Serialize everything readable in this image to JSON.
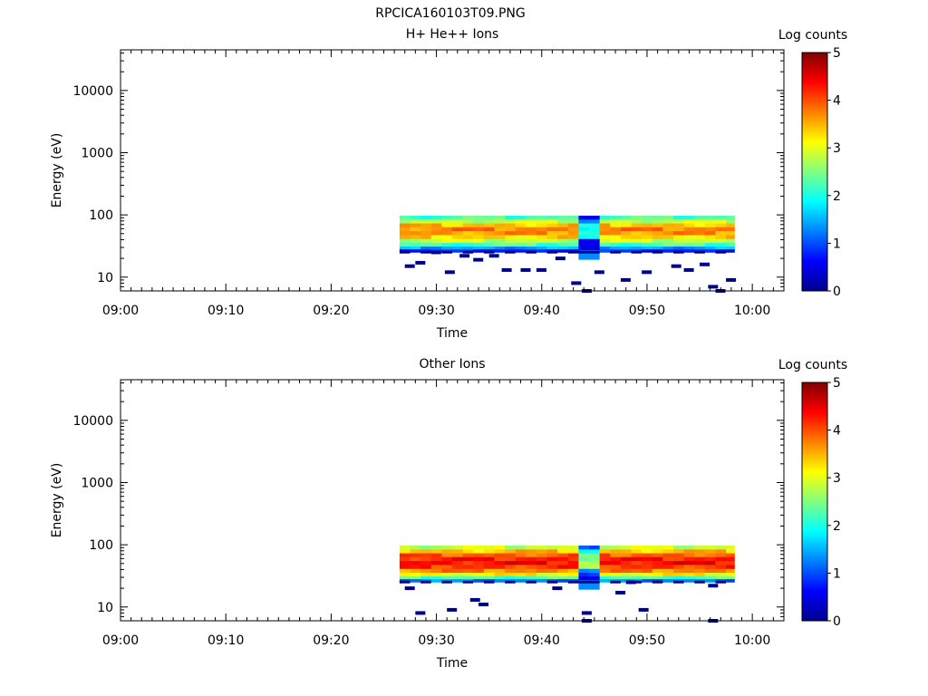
{
  "figure_title": "RPCICA160103T09.PNG",
  "colors": {
    "colormap": [
      "#00008f",
      "#0000ff",
      "#0080ff",
      "#00ffff",
      "#80ff80",
      "#ffff00",
      "#ff8000",
      "#ff0000",
      "#800000"
    ],
    "axes": "#000000",
    "background": "#ffffff"
  },
  "chart_data": [
    {
      "type": "heatmap",
      "title": "H+ He++ Ions",
      "xlabel": "Time",
      "ylabel": "Energy (eV)",
      "x_ticks": [
        "09:00",
        "09:10",
        "09:20",
        "09:30",
        "09:40",
        "09:50",
        "10:00"
      ],
      "x_range_minutes": [
        0,
        63
      ],
      "y_scale": "log",
      "y_range": [
        6,
        45000
      ],
      "y_ticks": [
        "10",
        "100",
        "1000",
        "10000"
      ],
      "y_tick_values": [
        10,
        100,
        1000,
        10000
      ],
      "colorbar_label": "Log counts",
      "colorbar_ticks": [
        "0",
        "1",
        "2",
        "3",
        "4",
        "5"
      ],
      "z_range": [
        0,
        5
      ],
      "data_window_minutes": [
        26.5,
        58.3
      ],
      "data_energy_range_eV": [
        20,
        95
      ],
      "profile_log_counts": [
        {
          "energy_eV": 90,
          "log_counts": 2.2
        },
        {
          "energy_eV": 78,
          "log_counts": 2.8
        },
        {
          "energy_eV": 68,
          "log_counts": 3.4
        },
        {
          "energy_eV": 59,
          "log_counts": 3.7
        },
        {
          "energy_eV": 51,
          "log_counts": 3.6
        },
        {
          "energy_eV": 44,
          "log_counts": 3.3
        },
        {
          "energy_eV": 38,
          "log_counts": 2.8
        },
        {
          "energy_eV": 33,
          "log_counts": 2.2
        },
        {
          "energy_eV": 29,
          "log_counts": 1.4
        },
        {
          "energy_eV": 27,
          "log_counts": 0.7
        }
      ],
      "dip_minutes": [
        43.8,
        45.1
      ],
      "sparse_low_energy_counts": [
        {
          "minute": 27.0,
          "energy_eV": 15
        },
        {
          "minute": 28.0,
          "energy_eV": 17
        },
        {
          "minute": 29.5,
          "energy_eV": 25
        },
        {
          "minute": 30.8,
          "energy_eV": 12
        },
        {
          "minute": 32.2,
          "energy_eV": 22
        },
        {
          "minute": 33.5,
          "energy_eV": 19
        },
        {
          "minute": 35.0,
          "energy_eV": 22
        },
        {
          "minute": 36.2,
          "energy_eV": 13
        },
        {
          "minute": 38.0,
          "energy_eV": 13
        },
        {
          "minute": 39.5,
          "energy_eV": 13
        },
        {
          "minute": 41.3,
          "energy_eV": 20
        },
        {
          "minute": 42.8,
          "energy_eV": 8
        },
        {
          "minute": 43.8,
          "energy_eV": 6
        },
        {
          "minute": 45.0,
          "energy_eV": 12
        },
        {
          "minute": 47.5,
          "energy_eV": 9
        },
        {
          "minute": 49.5,
          "energy_eV": 12
        },
        {
          "minute": 52.3,
          "energy_eV": 15
        },
        {
          "minute": 53.5,
          "energy_eV": 13
        },
        {
          "minute": 55.0,
          "energy_eV": 16
        },
        {
          "minute": 55.8,
          "energy_eV": 7
        },
        {
          "minute": 56.5,
          "energy_eV": 6
        },
        {
          "minute": 57.5,
          "energy_eV": 9
        }
      ]
    },
    {
      "type": "heatmap",
      "title": "Other Ions",
      "xlabel": "Time",
      "ylabel": "Energy (eV)",
      "x_ticks": [
        "09:00",
        "09:10",
        "09:20",
        "09:30",
        "09:40",
        "09:50",
        "10:00"
      ],
      "x_range_minutes": [
        0,
        63
      ],
      "y_scale": "log",
      "y_range": [
        6,
        45000
      ],
      "y_ticks": [
        "10",
        "100",
        "1000",
        "10000"
      ],
      "y_tick_values": [
        10,
        100,
        1000,
        10000
      ],
      "colorbar_label": "Log counts",
      "colorbar_ticks": [
        "0",
        "1",
        "2",
        "3",
        "4",
        "5"
      ],
      "z_range": [
        0,
        5
      ],
      "data_window_minutes": [
        26.5,
        58.3
      ],
      "data_energy_range_eV": [
        22,
        95
      ],
      "profile_log_counts": [
        {
          "energy_eV": 90,
          "log_counts": 2.8
        },
        {
          "energy_eV": 78,
          "log_counts": 3.4
        },
        {
          "energy_eV": 68,
          "log_counts": 3.9
        },
        {
          "energy_eV": 59,
          "log_counts": 4.2
        },
        {
          "energy_eV": 51,
          "log_counts": 4.3
        },
        {
          "energy_eV": 44,
          "log_counts": 4.1
        },
        {
          "energy_eV": 38,
          "log_counts": 3.7
        },
        {
          "energy_eV": 33,
          "log_counts": 3.1
        },
        {
          "energy_eV": 29,
          "log_counts": 2.2
        },
        {
          "energy_eV": 27,
          "log_counts": 1.2
        }
      ],
      "dip_minutes": [
        43.8,
        45.1
      ],
      "sparse_low_energy_counts": [
        {
          "minute": 27.0,
          "energy_eV": 20
        },
        {
          "minute": 28.0,
          "energy_eV": 8
        },
        {
          "minute": 31.0,
          "energy_eV": 9
        },
        {
          "minute": 33.2,
          "energy_eV": 13
        },
        {
          "minute": 34.0,
          "energy_eV": 11
        },
        {
          "minute": 41.0,
          "energy_eV": 20
        },
        {
          "minute": 43.8,
          "energy_eV": 8
        },
        {
          "minute": 43.8,
          "energy_eV": 6
        },
        {
          "minute": 47.0,
          "energy_eV": 17
        },
        {
          "minute": 48.0,
          "energy_eV": 25
        },
        {
          "minute": 49.2,
          "energy_eV": 9
        },
        {
          "minute": 55.8,
          "energy_eV": 6
        },
        {
          "minute": 55.8,
          "energy_eV": 22
        }
      ]
    }
  ]
}
